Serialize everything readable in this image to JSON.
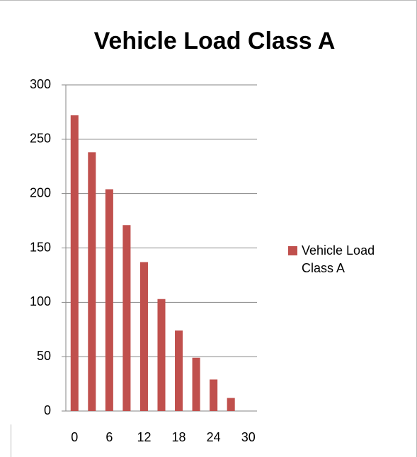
{
  "chart_data": {
    "type": "bar",
    "title": "Vehicle Load Class A",
    "x": [
      0,
      3,
      6,
      9,
      12,
      15,
      18,
      21,
      24,
      27
    ],
    "series": [
      {
        "name": "Vehicle Load Class A",
        "color": "#c0504d",
        "values": [
          272,
          238,
          204,
          171,
          137,
          103,
          74,
          49,
          29,
          12
        ]
      }
    ],
    "xlim": [
      -1.5,
      31.5
    ],
    "xticks": [
      0,
      6,
      12,
      18,
      24,
      30
    ],
    "ylim": [
      0,
      300
    ],
    "yticks": [
      0,
      50,
      100,
      150,
      200,
      250,
      300
    ],
    "grid": true,
    "legend": "right"
  }
}
